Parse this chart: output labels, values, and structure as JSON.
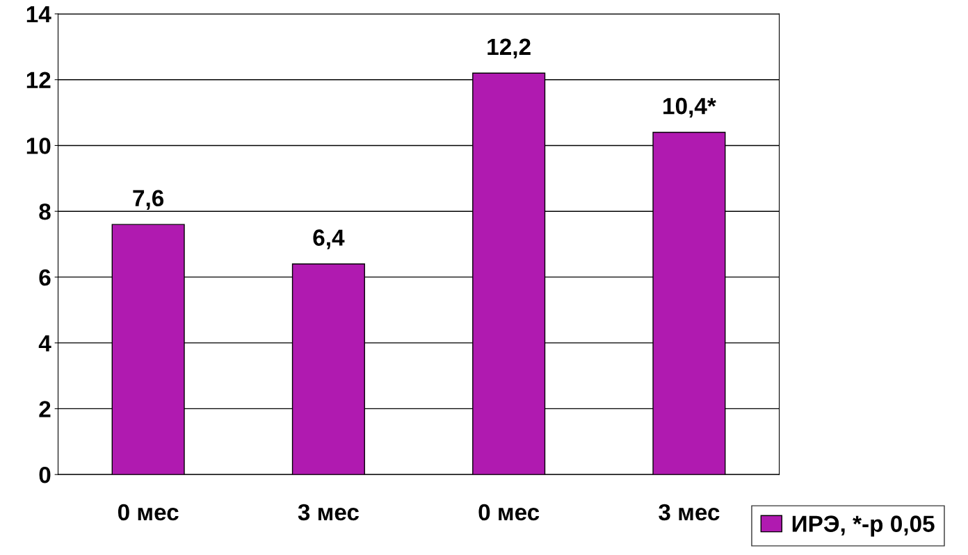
{
  "chart_data": {
    "type": "bar",
    "categories": [
      "0 мес",
      "3 мес",
      "0 мес",
      "3 мес"
    ],
    "series": [
      {
        "name": "ИРЭ, *-р 0,05",
        "color": "#b01ab0",
        "values": [
          7.6,
          6.4,
          12.2,
          10.4
        ],
        "value_labels": [
          "7,6",
          "6,4",
          "12,2",
          "10,4*"
        ]
      }
    ],
    "ylim": [
      0,
      14
    ],
    "yticks": [
      0,
      2,
      4,
      6,
      8,
      10,
      12,
      14
    ],
    "grid": "y",
    "legend": "bottom right"
  }
}
